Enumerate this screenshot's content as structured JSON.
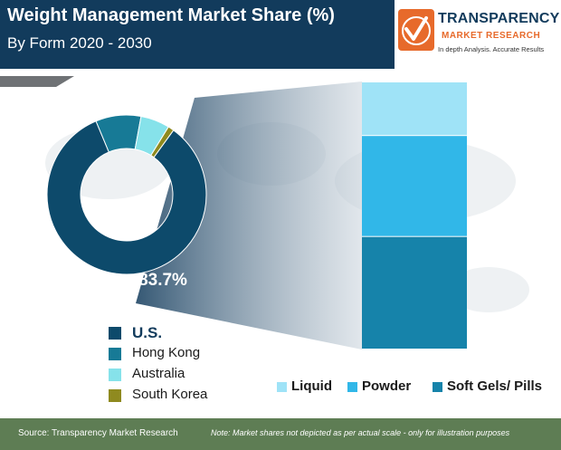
{
  "header": {
    "title": "Weight Management Market Share (%)",
    "subtitle": "By Form 2020 - 2030"
  },
  "logo": {
    "name": "TRANSPARENCY",
    "tagline": "MARKET RESEARCH",
    "slogan": "In depth Analysis. Accurate Results"
  },
  "footer": {
    "source": "Source: Transparency Market Research",
    "note": "Note: Market shares not depicted as per actual scale - only for illustration purposes"
  },
  "colors": {
    "header_bg": "#123b5c",
    "footer_bg": "#5e7d54",
    "us": "#0d4a6b",
    "hong_kong": "#177a96",
    "australia": "#86e2ea",
    "south_korea": "#8f8a1f",
    "liquid": "#9fe3f7",
    "powder": "#31b7e8",
    "soft_gels": "#1683aa"
  },
  "chart_data": [
    {
      "type": "pie",
      "variant": "donut",
      "categories": [
        "U.S.",
        "Hong Kong",
        "Australia",
        "South Korea"
      ],
      "values": [
        83.7,
        9.2,
        5.9,
        1.2
      ],
      "annotation": "83.7%",
      "legend_position": "bottom-left"
    },
    {
      "type": "bar",
      "variant": "stacked",
      "categories": [
        ""
      ],
      "series": [
        {
          "name": "Soft Gels/ Pills",
          "values": [
            42
          ]
        },
        {
          "name": "Powder",
          "values": [
            38
          ]
        },
        {
          "name": "Liquid",
          "values": [
            20
          ]
        }
      ],
      "legend": [
        "Liquid",
        "Powder",
        "Soft Gels/ Pills"
      ],
      "legend_position": "bottom"
    }
  ]
}
